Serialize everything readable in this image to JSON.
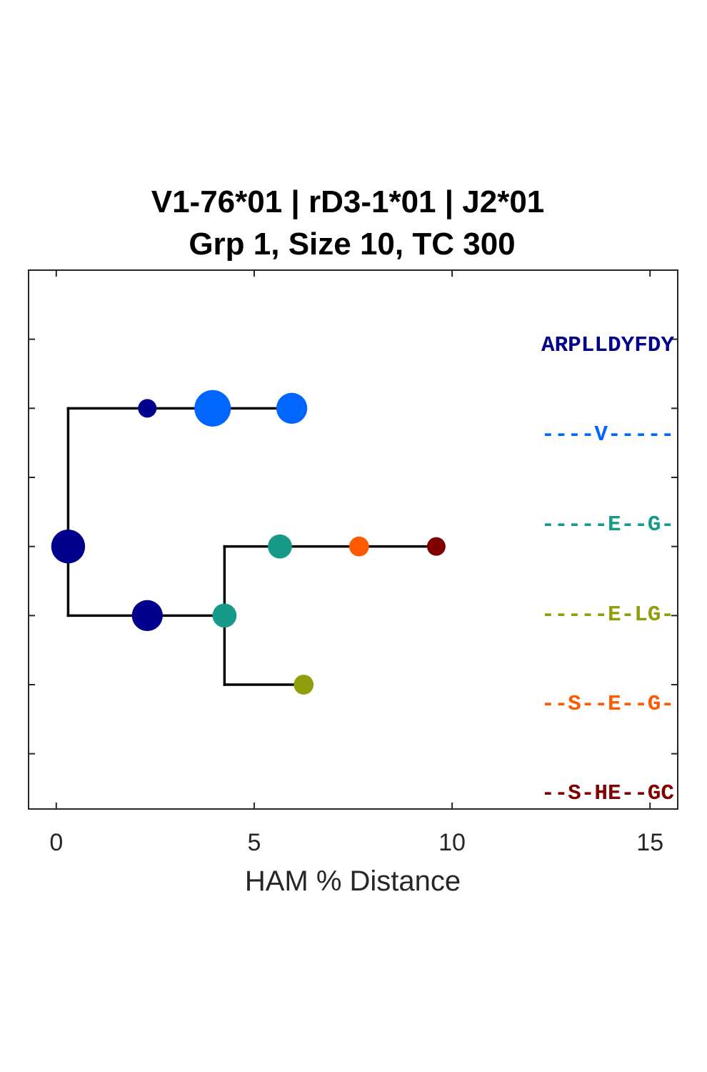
{
  "title": {
    "line1": "V1-76*01 | rD3-1*01 | J2*01",
    "line2": "Grp 1, Size 10, TC 300"
  },
  "x_axis": {
    "label": "HAM % Distance",
    "ticks": [
      "0",
      "5",
      "10",
      "15"
    ],
    "tick_values": [
      0,
      5,
      10,
      15
    ],
    "range": [
      -0.7,
      15.7
    ]
  },
  "y_axis": {
    "range": [
      0.2,
      8.0
    ],
    "tick_count": 8
  },
  "tree": {
    "edge_color": "#000000",
    "edges": [
      {
        "from": [
          0.3,
          4.0
        ],
        "to": [
          0.3,
          6.0
        ]
      },
      {
        "from": [
          0.3,
          4.0
        ],
        "to": [
          0.3,
          3.0
        ]
      },
      {
        "from": [
          0.3,
          6.0
        ],
        "to": [
          5.9,
          6.0
        ]
      },
      {
        "from": [
          0.3,
          3.0
        ],
        "to": [
          4.25,
          3.0
        ]
      },
      {
        "from": [
          4.25,
          3.0
        ],
        "to": [
          4.25,
          4.0
        ]
      },
      {
        "from": [
          4.25,
          4.0
        ],
        "to": [
          9.6,
          4.0
        ]
      },
      {
        "from": [
          4.25,
          3.0
        ],
        "to": [
          4.25,
          2.0
        ]
      },
      {
        "from": [
          4.25,
          2.0
        ],
        "to": [
          6.2,
          2.0
        ]
      }
    ],
    "nodes": [
      {
        "x": 0.3,
        "y": 4.0,
        "size": 6,
        "color": "#00008c"
      },
      {
        "x": 2.3,
        "y": 6.0,
        "size": 1,
        "color": "#00008c"
      },
      {
        "x": 3.95,
        "y": 6.0,
        "size": 7,
        "color": "#0066ff"
      },
      {
        "x": 5.95,
        "y": 6.0,
        "size": 5,
        "color": "#0066ff"
      },
      {
        "x": 2.3,
        "y": 3.0,
        "size": 5,
        "color": "#00008c"
      },
      {
        "x": 4.25,
        "y": 3.0,
        "size": 3,
        "color": "#179a8a"
      },
      {
        "x": 5.65,
        "y": 4.0,
        "size": 3,
        "color": "#179a8a"
      },
      {
        "x": 7.65,
        "y": 4.0,
        "size": 2,
        "color": "#ff5a00"
      },
      {
        "x": 9.6,
        "y": 4.0,
        "size": 1,
        "color": "#800000"
      },
      {
        "x": 6.25,
        "y": 2.0,
        "size": 2,
        "color": "#909e0b"
      }
    ]
  },
  "sequences": [
    {
      "text": "ARPLLDYFDY",
      "color": "#00008c"
    },
    {
      "text": "----V-----",
      "color": "#0066ff"
    },
    {
      "text": "-----E--G-",
      "color": "#179a8a"
    },
    {
      "text": "-----E-LG-",
      "color": "#909e0b"
    },
    {
      "text": "--S--E--G-",
      "color": "#ff5a00"
    },
    {
      "text": "--S-HE--GC",
      "color": "#800000"
    }
  ]
}
